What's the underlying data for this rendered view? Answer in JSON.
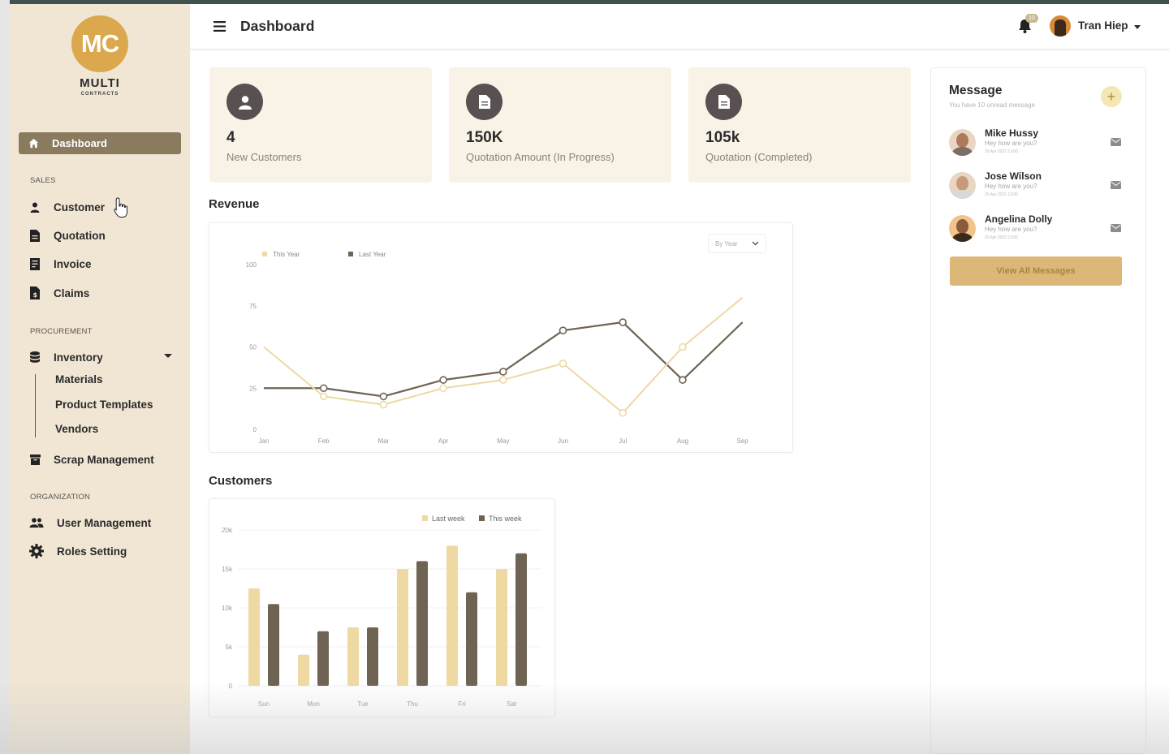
{
  "brand": {
    "initials": "MC",
    "name": "MULTI",
    "tagline": "CONTRACTS"
  },
  "sidebar": {
    "active": {
      "label": "Dashboard",
      "icon": "home-icon"
    },
    "sections": [
      {
        "label": "SALES",
        "items": [
          {
            "label": "Customer",
            "icon": "user-icon"
          },
          {
            "label": "Quotation",
            "icon": "document-icon"
          },
          {
            "label": "Invoice",
            "icon": "invoice-icon"
          },
          {
            "label": "Claims",
            "icon": "claims-icon"
          }
        ]
      },
      {
        "label": "PROCUREMENT",
        "items": [
          {
            "label": "Inventory",
            "icon": "database-icon",
            "children": [
              "Materials",
              "Product Templates",
              "Vendors"
            ]
          },
          {
            "label": "Scrap Management",
            "icon": "archive-icon"
          }
        ]
      },
      {
        "label": "ORGANIZATION",
        "items": [
          {
            "label": "User Management",
            "icon": "users-icon"
          },
          {
            "label": "Roles Setting",
            "icon": "gear-icon"
          }
        ]
      }
    ]
  },
  "header": {
    "title": "Dashboard",
    "notification_count": "10",
    "user_name": "Tran Hiep"
  },
  "stats": [
    {
      "value": "4",
      "label": "New Customers",
      "icon": "user-icon"
    },
    {
      "value": "150K",
      "label": "Quotation Amount (In Progress)",
      "icon": "document-icon"
    },
    {
      "value": "105k",
      "label": "Quotation (Completed)",
      "icon": "document-icon"
    }
  ],
  "revenue": {
    "title": "Revenue",
    "filter": "By Year"
  },
  "customers": {
    "title": "Customers"
  },
  "messages": {
    "title": "Message",
    "subtitle": "You have 10 unread message",
    "items": [
      {
        "name": "Mike Hussy",
        "text": "Hey how are you?",
        "time": "20 Apr 2023 13:00"
      },
      {
        "name": "Jose Wilson",
        "text": "Hey how are you?",
        "time": "20 Apr 2023 13:00"
      },
      {
        "name": "Angelina Dolly",
        "text": "Hey how are you?",
        "time": "20 Apr 2023 13:00"
      }
    ],
    "view_all_label": "View All Messages"
  },
  "colors": {
    "accent": "#dba84e",
    "sidebar_bg": "#f0e6d3",
    "active_nav": "#8a7b5f",
    "series_light": "#eed9a3",
    "series_dark": "#6f6453"
  },
  "chart_data": [
    {
      "type": "line",
      "categories": [
        "Jan",
        "Feb",
        "Mar",
        "Apr",
        "May",
        "Jun",
        "Jul",
        "Aug",
        "Sep"
      ],
      "series": [
        {
          "name": "This Year",
          "values": [
            50,
            20,
            15,
            25,
            30,
            40,
            10,
            50,
            80
          ]
        },
        {
          "name": "Last Year",
          "values": [
            25,
            25,
            20,
            30,
            35,
            60,
            65,
            30,
            65
          ]
        }
      ],
      "yticks": [
        0,
        25,
        50,
        75,
        100
      ],
      "ylim": [
        0,
        100
      ],
      "legend": "top-left",
      "grid": false
    },
    {
      "type": "bar",
      "categories": [
        "Sun",
        "Mon",
        "Tue",
        "Thu",
        "Fri",
        "Sat"
      ],
      "series": [
        {
          "name": "Last week",
          "values": [
            12500,
            4000,
            7500,
            15000,
            18000,
            15000
          ]
        },
        {
          "name": "This week",
          "values": [
            10500,
            7000,
            7500,
            16000,
            12000,
            17000
          ]
        }
      ],
      "yticks": [
        "0",
        "5k",
        "10k",
        "15k",
        "20k"
      ],
      "ylim": [
        0,
        20000
      ],
      "legend": "top-right",
      "grid": true
    }
  ]
}
